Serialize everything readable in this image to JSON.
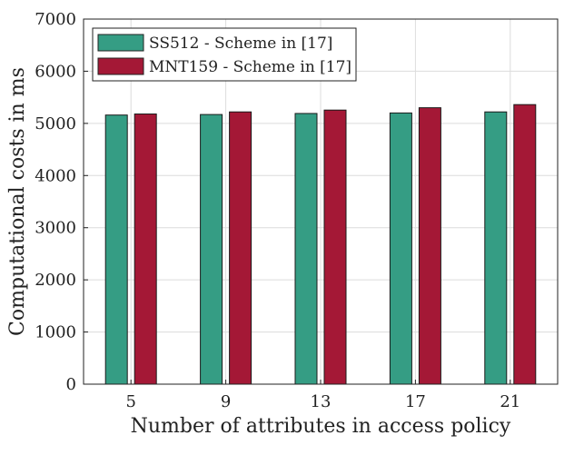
{
  "chart_data": {
    "type": "bar",
    "title": "",
    "xlabel": "Number of attributes in access policy",
    "ylabel": "Computational costs in ms",
    "categories": [
      "5",
      "9",
      "13",
      "17",
      "21"
    ],
    "ylim": [
      0,
      7000
    ],
    "yticks": [
      "0",
      "1000",
      "2000",
      "3000",
      "4000",
      "5000",
      "6000",
      "7000"
    ],
    "grid": true,
    "legend_position": "top-left",
    "series": [
      {
        "name": "SS512 - Scheme in [17]",
        "color": "#359D84",
        "values": [
          5160,
          5170,
          5190,
          5200,
          5220
        ]
      },
      {
        "name": "MNT159 - Scheme in [17]",
        "color": "#A41836",
        "values": [
          5180,
          5220,
          5255,
          5300,
          5360
        ]
      }
    ]
  }
}
